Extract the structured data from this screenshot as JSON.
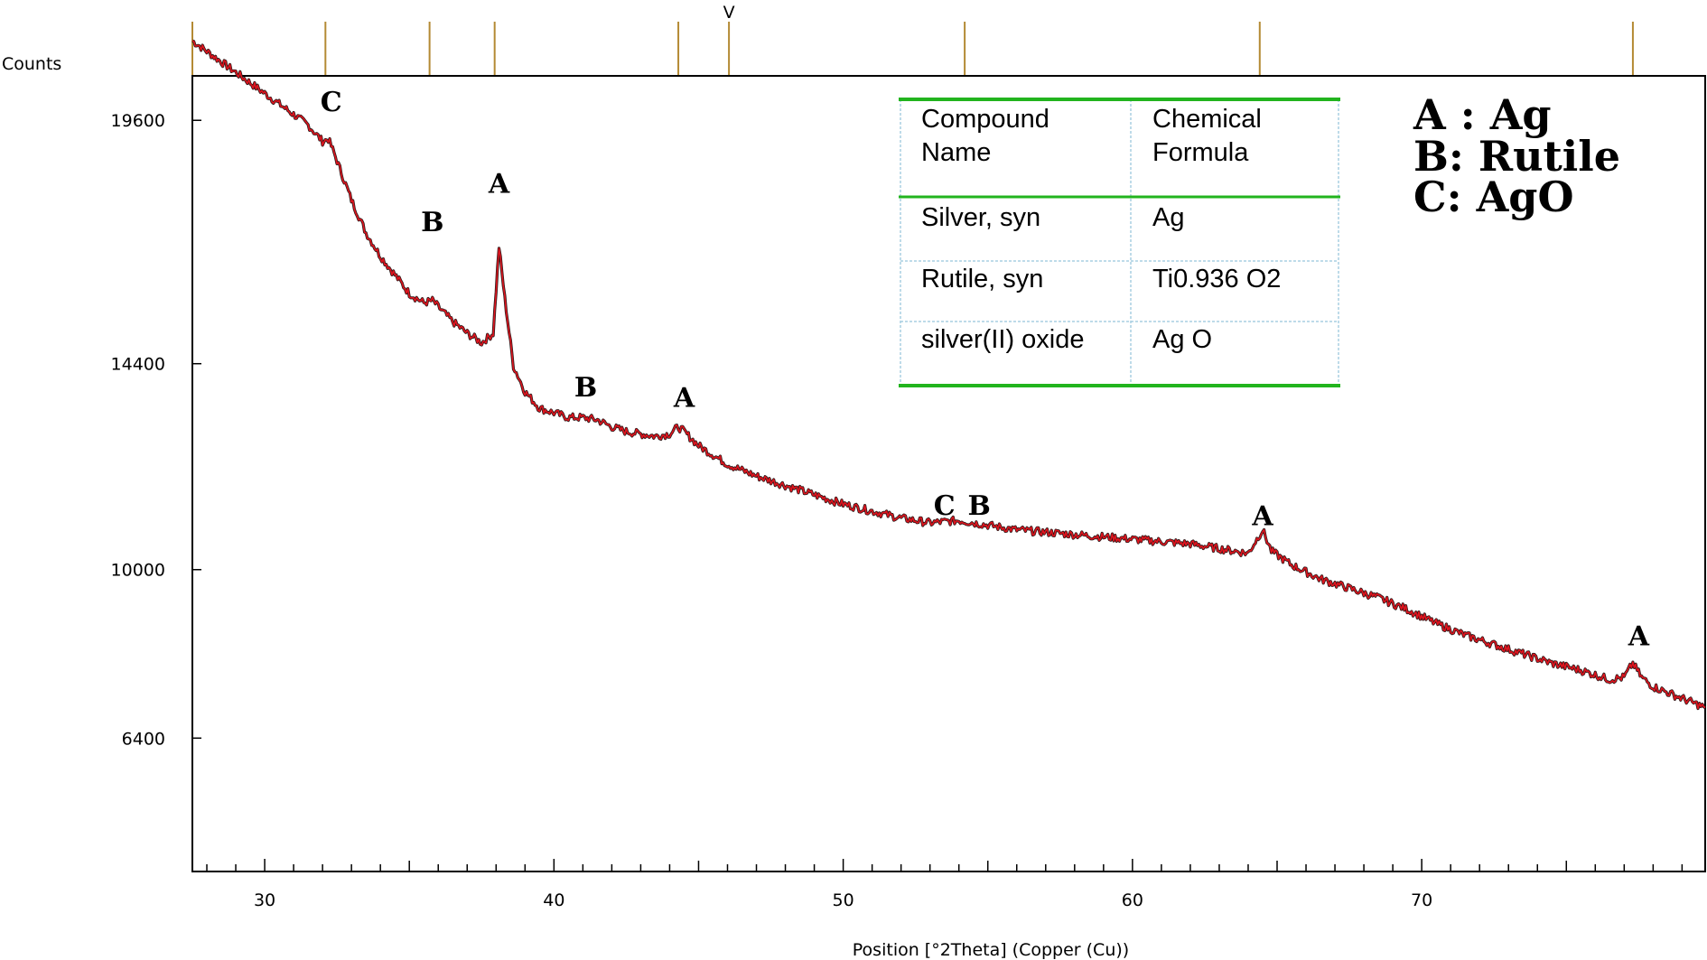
{
  "chart_data": {
    "type": "line",
    "ylabel": "Counts",
    "xlabel": "Position [°2Theta] (Copper (Cu))",
    "xlim": [
      27.5,
      79.8
    ],
    "ylim": [
      3550,
      20550
    ],
    "x_ticks": [
      30,
      40,
      50,
      60,
      70
    ],
    "y_ticks": [
      6400,
      10000,
      14400,
      19600
    ],
    "series": [
      {
        "color": "#e0141e",
        "points": [
          [
            27.5,
            21300
          ],
          [
            28.5,
            20850
          ],
          [
            29.5,
            20400
          ],
          [
            30.5,
            19950
          ],
          [
            31.5,
            19500
          ],
          [
            32.0,
            19150
          ],
          [
            32.2,
            19200
          ],
          [
            32.4,
            18900
          ],
          [
            33.0,
            17900
          ],
          [
            33.5,
            17200
          ],
          [
            34.0,
            16700
          ],
          [
            34.5,
            16300
          ],
          [
            35.0,
            15900
          ],
          [
            35.5,
            15700
          ],
          [
            35.8,
            15750
          ],
          [
            36.1,
            15550
          ],
          [
            36.5,
            15300
          ],
          [
            37.0,
            15050
          ],
          [
            37.5,
            14850
          ],
          [
            37.9,
            15050
          ],
          [
            38.1,
            16900
          ],
          [
            38.3,
            15800
          ],
          [
            38.6,
            14350
          ],
          [
            39.0,
            13800
          ],
          [
            39.5,
            13450
          ],
          [
            40.0,
            13350
          ],
          [
            40.5,
            13250
          ],
          [
            41.0,
            13250
          ],
          [
            41.5,
            13200
          ],
          [
            42.0,
            13050
          ],
          [
            42.5,
            12950
          ],
          [
            43.0,
            12900
          ],
          [
            43.5,
            12850
          ],
          [
            44.0,
            12900
          ],
          [
            44.3,
            13050
          ],
          [
            44.5,
            12950
          ],
          [
            45.0,
            12650
          ],
          [
            45.5,
            12450
          ],
          [
            46.0,
            12250
          ],
          [
            47.0,
            12000
          ],
          [
            48.0,
            11800
          ],
          [
            49.0,
            11600
          ],
          [
            50.0,
            11400
          ],
          [
            51.0,
            11250
          ],
          [
            52.0,
            11100
          ],
          [
            53.0,
            11000
          ],
          [
            54.0,
            11050
          ],
          [
            55.0,
            10950
          ],
          [
            56.0,
            10850
          ],
          [
            57.0,
            10800
          ],
          [
            58.0,
            10750
          ],
          [
            59.0,
            10700
          ],
          [
            60.0,
            10650
          ],
          [
            61.0,
            10600
          ],
          [
            62.0,
            10550
          ],
          [
            63.0,
            10450
          ],
          [
            64.0,
            10350
          ],
          [
            64.5,
            10850
          ],
          [
            64.8,
            10400
          ],
          [
            65.5,
            10100
          ],
          [
            66.5,
            9800
          ],
          [
            67.5,
            9600
          ],
          [
            68.5,
            9400
          ],
          [
            69.5,
            9150
          ],
          [
            70.5,
            8850
          ],
          [
            71.5,
            8600
          ],
          [
            72.5,
            8400
          ],
          [
            73.5,
            8200
          ],
          [
            74.5,
            8000
          ],
          [
            75.5,
            7850
          ],
          [
            76.5,
            7650
          ],
          [
            77.0,
            7700
          ],
          [
            77.3,
            8000
          ],
          [
            77.6,
            7700
          ],
          [
            78.0,
            7500
          ],
          [
            79.0,
            7250
          ],
          [
            79.8,
            7050
          ]
        ]
      }
    ],
    "reference_ticks": [
      27.5,
      32.1,
      35.7,
      37.95,
      44.3,
      46.05,
      54.2,
      64.4,
      77.3
    ],
    "reference_marker": {
      "x": 46.05,
      "label": "V"
    },
    "peak_labels": [
      {
        "x": 32.3,
        "y": 19800,
        "text": "C"
      },
      {
        "x": 35.8,
        "y": 17230,
        "text": "B"
      },
      {
        "x": 38.1,
        "y": 18050,
        "text": "A"
      },
      {
        "x": 41.1,
        "y": 13700,
        "text": "B"
      },
      {
        "x": 44.5,
        "y": 13480,
        "text": "A"
      },
      {
        "x": 53.5,
        "y": 11170,
        "text": "C"
      },
      {
        "x": 54.7,
        "y": 11170,
        "text": "B"
      },
      {
        "x": 64.5,
        "y": 10950,
        "text": "A"
      },
      {
        "x": 77.5,
        "y": 8380,
        "text": "A"
      }
    ],
    "grid": false
  },
  "reference_table": {
    "headers": [
      "Compound\nName",
      "Chemical\nFormula"
    ],
    "rows": [
      [
        "Silver, syn",
        "Ag"
      ],
      [
        "Rutile, syn",
        "Ti0.936 O2"
      ],
      [
        "silver(II) oxide",
        "Ag O"
      ]
    ]
  },
  "peak_legend": [
    "A : Ag",
    "B: Rutile",
    "C: AgO"
  ],
  "colors": {
    "trace_red": "#e0141e",
    "trace_dark": "#2a1a1a",
    "table_rule": "#22b41e",
    "table_grid": "#a8cfe2",
    "ref_tick": "#b48a34"
  }
}
